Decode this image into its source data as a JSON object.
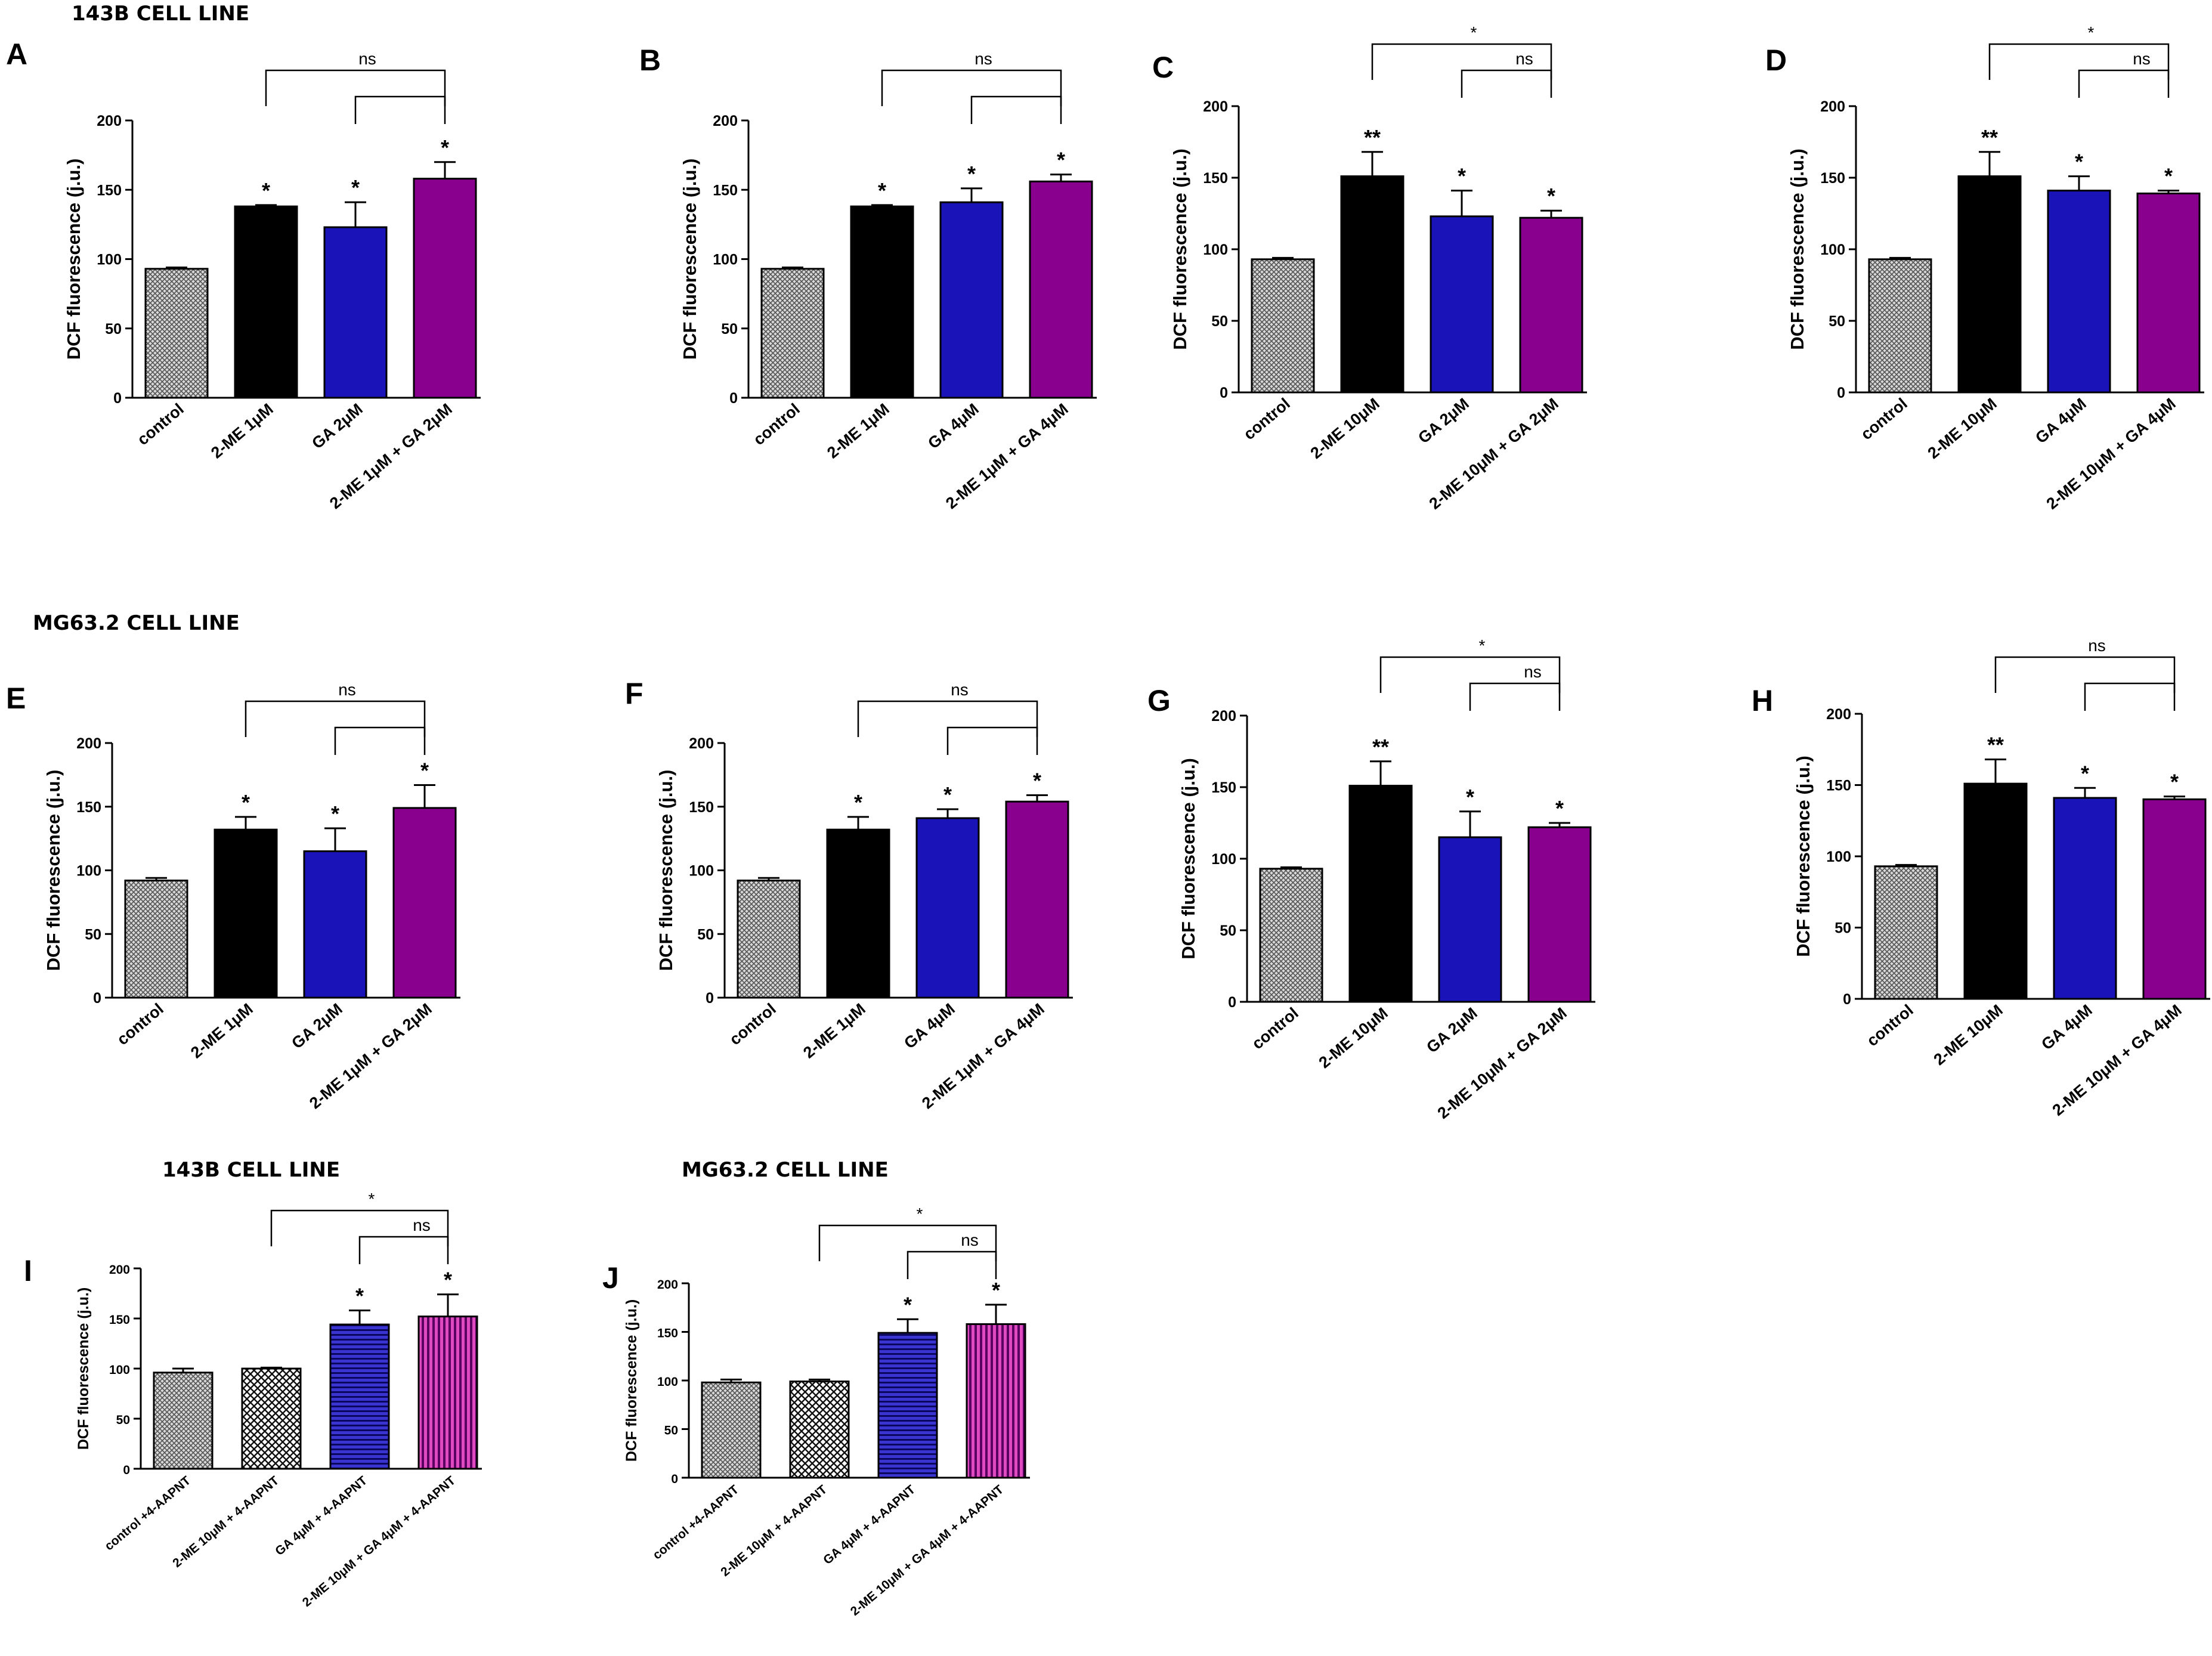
{
  "section_titles": {
    "t143b_top": "143B CELL LINE",
    "mg63_mid": "MG63.2 CELL LINE",
    "t143b_bottom": "143B CELL LINE",
    "mg63_bottom": "MG63.2 CELL LINE"
  },
  "colors": {
    "control_fill": "#cfcfcf",
    "black": "#000000",
    "blue": "#1a14b8",
    "purple": "#8a008e",
    "magenta": "#c4129c"
  },
  "chart_data": [
    {
      "panel": "A",
      "type": "bar",
      "ylabel": "DCF fluorescence (j.u.)",
      "ylim": [
        0,
        200
      ],
      "yticks": [
        0,
        50,
        100,
        150,
        200
      ],
      "categories": [
        "control",
        "2-ME 1μM",
        "GA 2μM",
        "2-ME 1μM + GA 2μM"
      ],
      "values": [
        93,
        138,
        123,
        158
      ],
      "errors": [
        1,
        1,
        18,
        12
      ],
      "fills": [
        "hatch",
        "black",
        "blue",
        "purple"
      ],
      "significance": [
        "",
        "*",
        "*",
        "*"
      ],
      "brackets": [
        {
          "from": 1,
          "to": 3,
          "label": "ns",
          "level": 0
        },
        {
          "from": 2,
          "to": 3,
          "label": "",
          "level": 1
        }
      ]
    },
    {
      "panel": "B",
      "type": "bar",
      "ylabel": "DCF fluorescence (j.u.)",
      "ylim": [
        0,
        200
      ],
      "yticks": [
        0,
        50,
        100,
        150,
        200
      ],
      "categories": [
        "control",
        "2-ME 1μM",
        "GA 4μM",
        "2-ME 1μM + GA 4μM"
      ],
      "values": [
        93,
        138,
        141,
        156
      ],
      "errors": [
        1,
        1,
        10,
        5
      ],
      "fills": [
        "hatch",
        "black",
        "blue",
        "purple"
      ],
      "significance": [
        "",
        "*",
        "*",
        "*"
      ],
      "brackets": [
        {
          "from": 1,
          "to": 3,
          "label": "ns",
          "level": 0
        },
        {
          "from": 2,
          "to": 3,
          "label": "",
          "level": 1
        }
      ]
    },
    {
      "panel": "C",
      "type": "bar",
      "ylabel": "DCF fluorescence (j.u.)",
      "ylim": [
        0,
        200
      ],
      "yticks": [
        0,
        50,
        100,
        150,
        200
      ],
      "categories": [
        "control",
        "2-ME 10μM",
        "GA 2μM",
        "2-ME 10μM + GA 2μM"
      ],
      "values": [
        93,
        151,
        123,
        122
      ],
      "errors": [
        1,
        17,
        18,
        5
      ],
      "fills": [
        "hatch",
        "black",
        "blue",
        "purple"
      ],
      "significance": [
        "",
        "**",
        "*",
        "*"
      ],
      "brackets": [
        {
          "from": 1,
          "to": 3,
          "label": "*",
          "level": 0
        },
        {
          "from": 2,
          "to": 3,
          "label": "ns",
          "level": 1
        }
      ]
    },
    {
      "panel": "D",
      "type": "bar",
      "ylabel": "DCF fluorescence (j.u.)",
      "ylim": [
        0,
        200
      ],
      "yticks": [
        0,
        50,
        100,
        150,
        200
      ],
      "categories": [
        "control",
        "2-ME 10μM",
        "GA 4μM",
        "2-ME 10μM + GA 4μM"
      ],
      "values": [
        93,
        151,
        141,
        139
      ],
      "errors": [
        1,
        17,
        10,
        2
      ],
      "fills": [
        "hatch",
        "black",
        "blue",
        "purple"
      ],
      "significance": [
        "",
        "**",
        "*",
        "*"
      ],
      "brackets": [
        {
          "from": 1,
          "to": 3,
          "label": "*",
          "level": 0
        },
        {
          "from": 2,
          "to": 3,
          "label": "ns",
          "level": 1
        }
      ]
    },
    {
      "panel": "E",
      "type": "bar",
      "ylabel": "DCF fluorescence (j.u.)",
      "ylim": [
        0,
        200
      ],
      "yticks": [
        0,
        50,
        100,
        150,
        200
      ],
      "categories": [
        "control",
        "2-ME 1μM",
        "GA 2μM",
        "2-ME 1μM + GA 2μM"
      ],
      "values": [
        92,
        132,
        115,
        149
      ],
      "errors": [
        2,
        10,
        18,
        18
      ],
      "fills": [
        "hatch",
        "black",
        "blue",
        "purple"
      ],
      "significance": [
        "",
        "*",
        "*",
        "*"
      ],
      "brackets": [
        {
          "from": 1,
          "to": 3,
          "label": "ns",
          "level": 0
        },
        {
          "from": 2,
          "to": 3,
          "label": "",
          "level": 1
        }
      ]
    },
    {
      "panel": "F",
      "type": "bar",
      "ylabel": "DCF fluorescence (j.u.)",
      "ylim": [
        0,
        200
      ],
      "yticks": [
        0,
        50,
        100,
        150,
        200
      ],
      "categories": [
        "control",
        "2-ME 1μM",
        "GA 4μM",
        "2-ME 1μM + GA 4μM"
      ],
      "values": [
        92,
        132,
        141,
        154
      ],
      "errors": [
        2,
        10,
        7,
        5
      ],
      "fills": [
        "hatch",
        "black",
        "blue",
        "purple"
      ],
      "significance": [
        "",
        "*",
        "*",
        "*"
      ],
      "brackets": [
        {
          "from": 1,
          "to": 3,
          "label": "ns",
          "level": 0
        },
        {
          "from": 2,
          "to": 3,
          "label": "",
          "level": 1
        }
      ]
    },
    {
      "panel": "G",
      "type": "bar",
      "ylabel": "DCF fluorescence (j.u.)",
      "ylim": [
        0,
        200
      ],
      "yticks": [
        0,
        50,
        100,
        150,
        200
      ],
      "categories": [
        "control",
        "2-ME 10μM",
        "GA 2μM",
        "2-ME 10μM + GA 2μM"
      ],
      "values": [
        93,
        151,
        115,
        122
      ],
      "errors": [
        1,
        17,
        18,
        3
      ],
      "fills": [
        "hatch",
        "black",
        "blue",
        "purple"
      ],
      "significance": [
        "",
        "**",
        "*",
        "*"
      ],
      "brackets": [
        {
          "from": 1,
          "to": 3,
          "label": "*",
          "level": 0
        },
        {
          "from": 2,
          "to": 3,
          "label": "ns",
          "level": 1
        }
      ]
    },
    {
      "panel": "H",
      "type": "bar",
      "ylabel": "DCF fluorescence (j.u.)",
      "ylim": [
        0,
        200
      ],
      "yticks": [
        0,
        50,
        100,
        150,
        200
      ],
      "categories": [
        "control",
        "2-ME 10μM",
        "GA 4μM",
        "2-ME 10μM + GA 4μM"
      ],
      "values": [
        93,
        151,
        141,
        140
      ],
      "errors": [
        1,
        17,
        7,
        2
      ],
      "fills": [
        "hatch",
        "black",
        "blue",
        "purple"
      ],
      "significance": [
        "",
        "**",
        "*",
        "*"
      ],
      "brackets": [
        {
          "from": 1,
          "to": 3,
          "label": "ns",
          "level": 0
        },
        {
          "from": 2,
          "to": 3,
          "label": "",
          "level": 1
        }
      ]
    },
    {
      "panel": "I",
      "type": "bar",
      "ylabel": "DCF fluorescence (j.u.)",
      "ylim": [
        0,
        200
      ],
      "yticks": [
        0,
        50,
        100,
        150,
        200
      ],
      "categories": [
        "control +4-AAPNT",
        "2-ME 10μM + 4-AAPNT",
        "GA 4μM + 4-AAPNT",
        "2-ME 10μM + GA 4μM + 4-AAPNT"
      ],
      "values": [
        96,
        100,
        144,
        152
      ],
      "errors": [
        4,
        1,
        14,
        22
      ],
      "fills": [
        "hatch",
        "check",
        "hstripe-blue",
        "vstripe-magenta"
      ],
      "significance": [
        "",
        "",
        "*",
        "*"
      ],
      "brackets": [
        {
          "from": 1,
          "to": 3,
          "label": "*",
          "level": 0
        },
        {
          "from": 2,
          "to": 3,
          "label": "ns",
          "level": 1
        }
      ]
    },
    {
      "panel": "J",
      "type": "bar",
      "ylabel": "DCF fluorescence (j.u.)",
      "ylim": [
        0,
        200
      ],
      "yticks": [
        0,
        50,
        100,
        150,
        200
      ],
      "categories": [
        "control +4-AAPNT",
        "2-ME 10μM + 4-AAPNT",
        "GA 4μM + 4-AAPNT",
        "2-ME 10μM + GA 4μM + 4-AAPNT"
      ],
      "values": [
        98,
        99,
        149,
        158
      ],
      "errors": [
        3,
        2,
        14,
        20
      ],
      "fills": [
        "hatch",
        "check",
        "hstripe-blue",
        "vstripe-magenta"
      ],
      "significance": [
        "",
        "",
        "*",
        "*"
      ],
      "brackets": [
        {
          "from": 1,
          "to": 3,
          "label": "*",
          "level": 0
        },
        {
          "from": 2,
          "to": 3,
          "label": "ns",
          "level": 1
        }
      ]
    }
  ]
}
